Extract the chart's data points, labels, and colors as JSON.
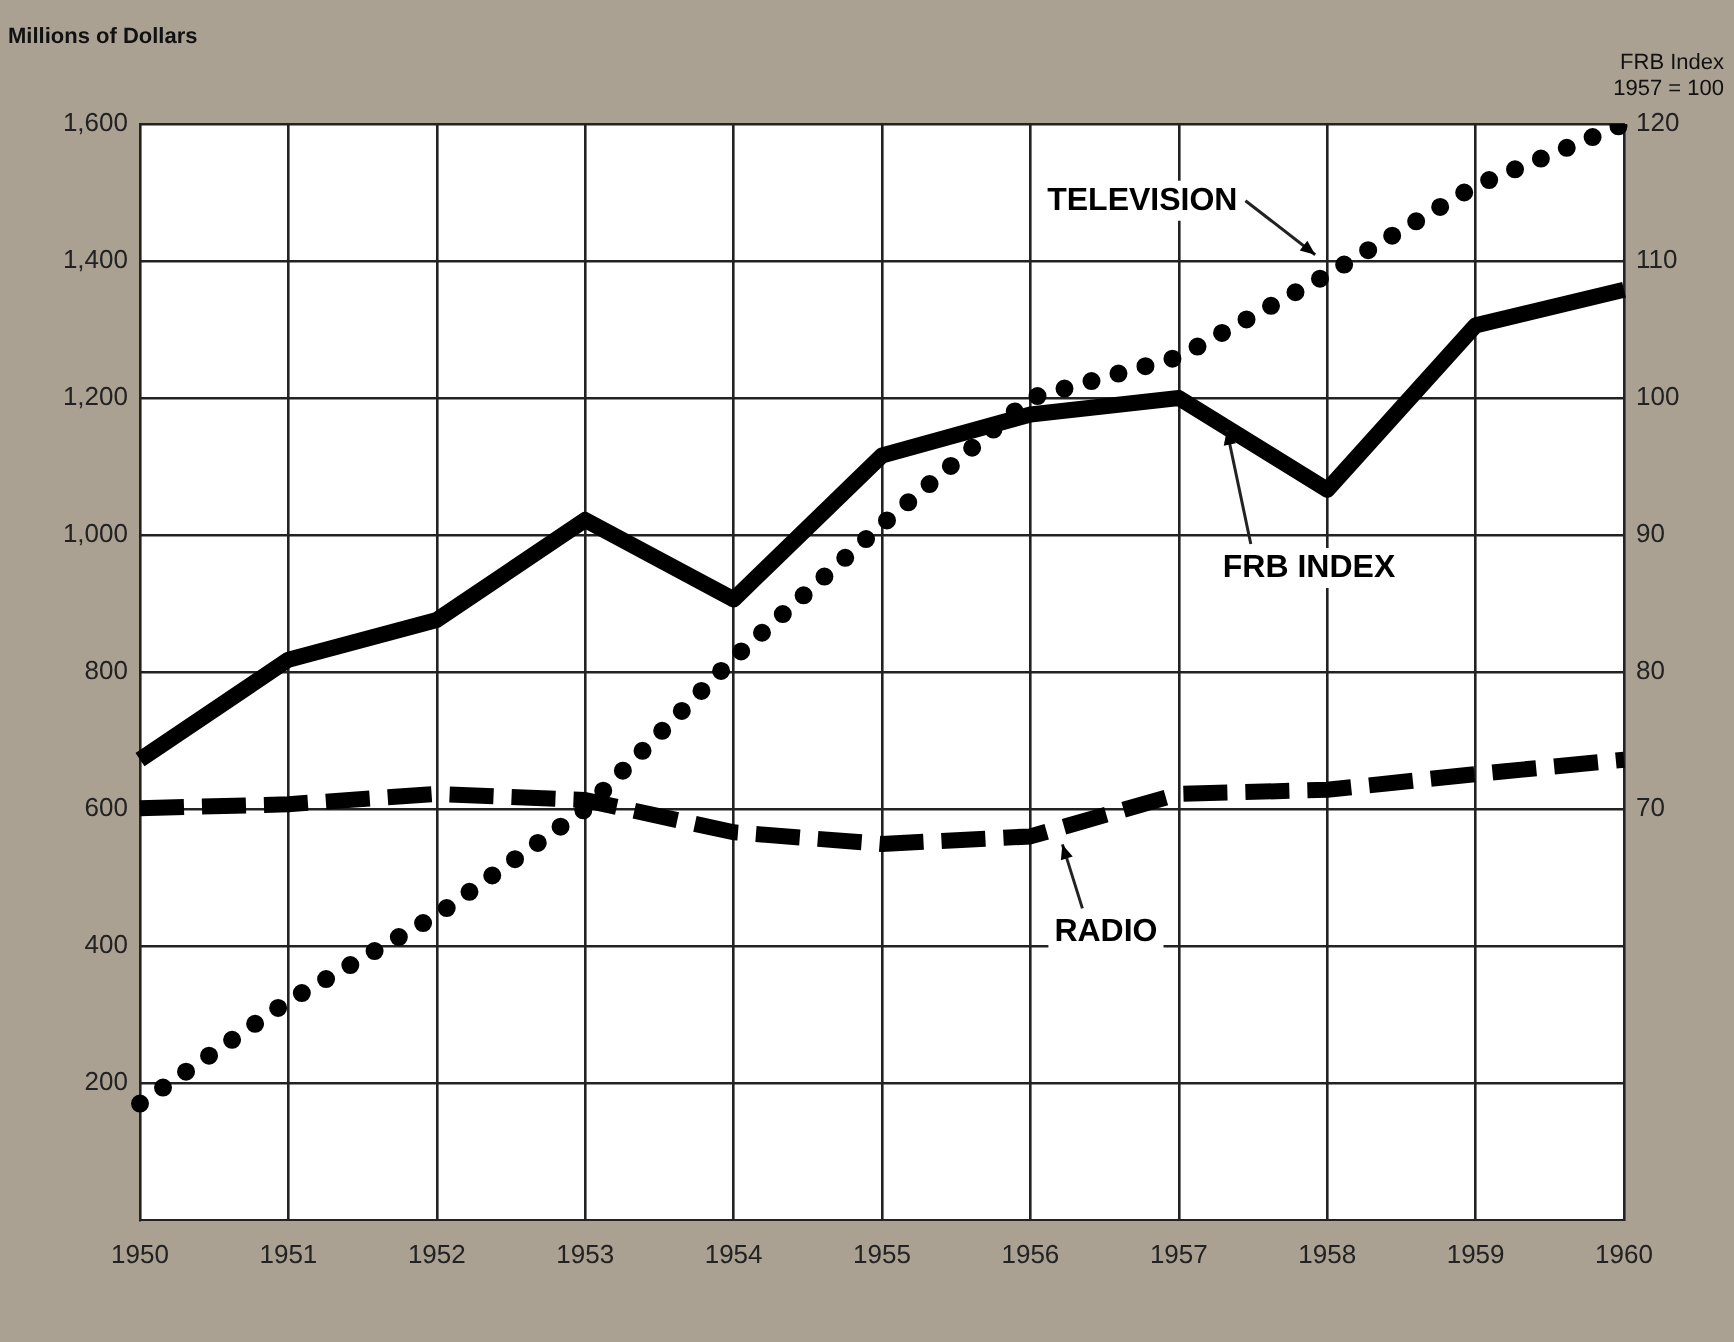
{
  "chart_data": {
    "type": "line",
    "ylabel": "Millions of Dollars",
    "y2label": "FRB Index\n1957 = 100",
    "categories": [
      "1950",
      "1951",
      "1952",
      "1953",
      "1954",
      "1955",
      "1956",
      "1957",
      "1958",
      "1959",
      "1960"
    ],
    "series": [
      {
        "name": "TELEVISION",
        "color": "#000000",
        "line_style": "dotted",
        "values": [
          170,
          320,
          445,
          600,
          820,
          1015,
          1200,
          1260,
          1380,
          1510,
          1600
        ]
      },
      {
        "name": "FRB INDEX",
        "color": "#000000",
        "line_style": "solid",
        "axis": "y2",
        "values": [
          73.6,
          80.9,
          83.8,
          91.1,
          85.3,
          95.8,
          98.8,
          100,
          93.3,
          105.3,
          107.9
        ]
      },
      {
        "name": "RADIO",
        "color": "#000000",
        "line_style": "dashed",
        "values": [
          601,
          607,
          622,
          613,
          566,
          549,
          560,
          622,
          628,
          651,
          672
        ]
      }
    ],
    "ylim": [
      0,
      1600
    ],
    "yticks": [
      200,
      400,
      600,
      800,
      "1,000",
      "1,200",
      "1,400",
      "1,600"
    ],
    "y2lim": [
      40,
      120
    ],
    "y2ticks": [
      70,
      80,
      90,
      100,
      110,
      120
    ],
    "grid": true,
    "legend": false,
    "marker": "none"
  }
}
